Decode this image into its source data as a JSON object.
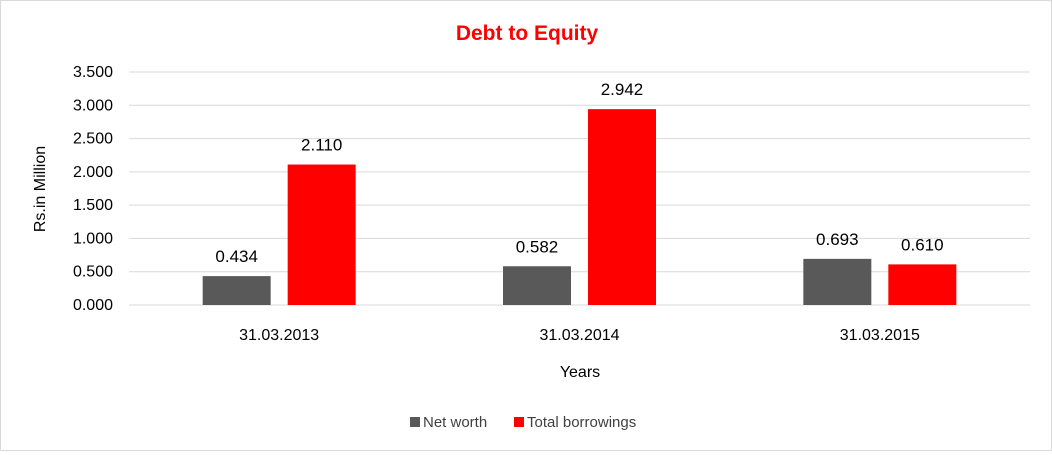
{
  "chart_data": {
    "type": "bar",
    "title": "Debt to Equity",
    "xlabel": "Years",
    "ylabel": "Rs.in Million",
    "categories": [
      "31.03.2013",
      "31.03.2014",
      "31.03.2015"
    ],
    "series": [
      {
        "name": "Net worth",
        "values": [
          0.434,
          0.582,
          0.693
        ],
        "labels": [
          "0.434",
          "0.582",
          "0.693"
        ],
        "color": "#595959"
      },
      {
        "name": "Total borrowings",
        "values": [
          2.11,
          2.942,
          0.61
        ],
        "labels": [
          "2.110",
          "2.942",
          "0.610"
        ],
        "color": "#ff0000"
      }
    ],
    "ylim": [
      0,
      3.5
    ],
    "yticks": [
      0,
      0.5,
      1.0,
      1.5,
      2.0,
      2.5,
      3.0,
      3.5
    ],
    "ytick_labels": [
      "0.000",
      "0.500",
      "1.000",
      "1.500",
      "2.000",
      "2.500",
      "3.000",
      "3.500"
    ],
    "grid": true,
    "legend": "bottom",
    "title_color": "#ff0000",
    "grid_color": "#d9d9d9"
  }
}
